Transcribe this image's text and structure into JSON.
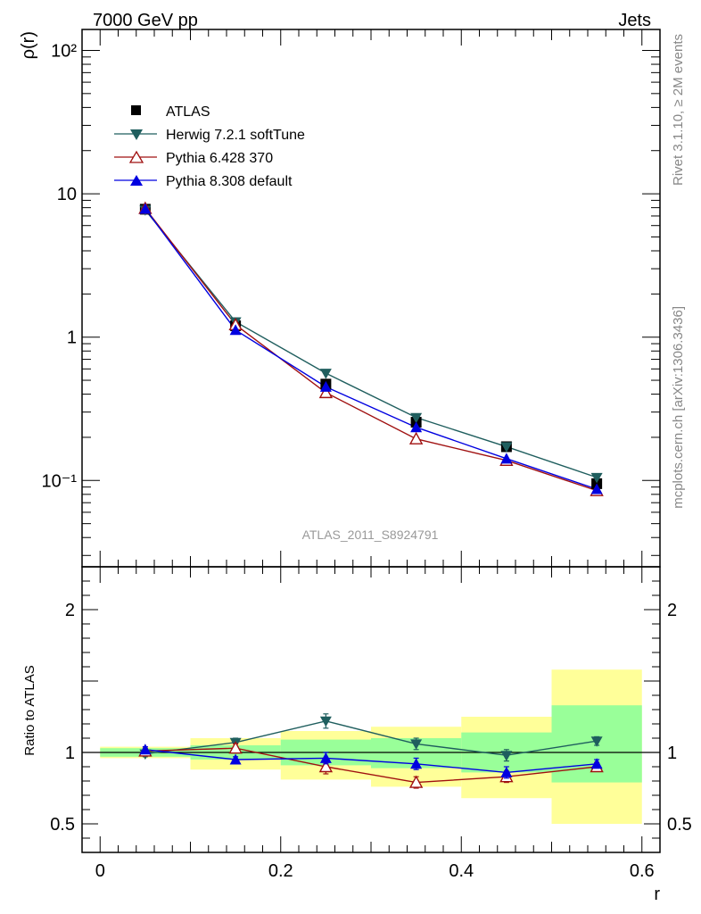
{
  "header": {
    "left_label": "7000 GeV pp",
    "right_label": "Jets"
  },
  "side_labels": {
    "rivet": "Rivet 3.1.10, ≥ 2M events",
    "mcplots": "mcplots.cern.ch [arXiv:1306.3436]"
  },
  "chart_data": [
    {
      "type": "line",
      "panel": "main",
      "ylabel": "ρ(r)",
      "xlabel": "",
      "yscale": "log",
      "ylim": [
        0.025,
        140
      ],
      "xlim": [
        -0.02,
        0.62
      ],
      "y_tick_labels": [
        "10⁻¹",
        "1",
        "10",
        "10²"
      ],
      "analysis_label": "ATLAS_2011_S8924791",
      "legend_position": "top-left",
      "x": [
        0.05,
        0.15,
        0.25,
        0.35,
        0.45,
        0.55
      ],
      "series": [
        {
          "name": "ATLAS",
          "marker": "square-filled",
          "color": "#000000",
          "values": [
            7.8,
            1.2,
            0.47,
            0.255,
            0.172,
            0.095
          ]
        },
        {
          "name": "Herwig 7.2.1 softTune",
          "marker": "triangle-down-filled",
          "color": "#1f5e5e",
          "values": [
            7.7,
            1.28,
            0.56,
            0.275,
            0.172,
            0.105
          ]
        },
        {
          "name": "Pythia 6.428 370",
          "marker": "triangle-up-open",
          "color": "#a01010",
          "values": [
            7.9,
            1.22,
            0.41,
            0.195,
            0.138,
            0.085
          ]
        },
        {
          "name": "Pythia 8.308 default",
          "marker": "triangle-up-filled",
          "color": "#0000e0",
          "values": [
            7.85,
            1.12,
            0.45,
            0.235,
            0.142,
            0.087
          ]
        }
      ]
    },
    {
      "type": "line",
      "panel": "ratio",
      "ylabel": "Ratio to ATLAS",
      "xlabel": "r",
      "ylim": [
        0.3,
        2.3
      ],
      "xlim": [
        -0.02,
        0.62
      ],
      "y_tick_labels": [
        "0.5",
        "1",
        "2"
      ],
      "x_tick_labels": [
        "0",
        "0.2",
        "0.4",
        "0.6"
      ],
      "x_ticks": [
        0,
        0.2,
        0.4,
        0.6
      ],
      "y_ticks": [
        0.5,
        1,
        2
      ],
      "x": [
        0.05,
        0.15,
        0.25,
        0.35,
        0.45,
        0.55
      ],
      "bands": [
        {
          "type": "yellow",
          "color": "#ffff99",
          "bins": [
            [
              0.0,
              0.1,
              0.96,
              1.04
            ],
            [
              0.1,
              0.2,
              0.88,
              1.1
            ],
            [
              0.2,
              0.3,
              0.81,
              1.15
            ],
            [
              0.3,
              0.4,
              0.76,
              1.18
            ],
            [
              0.4,
              0.5,
              0.68,
              1.25
            ],
            [
              0.5,
              0.6,
              0.5,
              1.58
            ]
          ]
        },
        {
          "type": "green",
          "color": "#99ff99",
          "bins": [
            [
              0.0,
              0.1,
              0.97,
              1.03
            ],
            [
              0.1,
              0.2,
              0.95,
              1.05
            ],
            [
              0.2,
              0.3,
              0.91,
              1.09
            ],
            [
              0.3,
              0.4,
              0.89,
              1.1
            ],
            [
              0.4,
              0.5,
              0.86,
              1.14
            ],
            [
              0.5,
              0.6,
              0.79,
              1.33
            ]
          ]
        }
      ],
      "series": [
        {
          "name": "Herwig 7.2.1 softTune",
          "marker": "triangle-down-filled",
          "color": "#1f5e5e",
          "values": [
            0.99,
            1.07,
            1.22,
            1.06,
            0.98,
            1.08
          ],
          "errors": [
            0.02,
            0.03,
            0.05,
            0.04,
            0.04,
            0.03
          ]
        },
        {
          "name": "Pythia 6.428 370",
          "marker": "triangle-up-open",
          "color": "#a01010",
          "values": [
            1.01,
            1.03,
            0.9,
            0.79,
            0.83,
            0.9
          ],
          "errors": [
            0.02,
            0.03,
            0.05,
            0.04,
            0.04,
            0.03
          ]
        },
        {
          "name": "Pythia 8.308 default",
          "marker": "triangle-up-filled",
          "color": "#0000e0",
          "values": [
            1.02,
            0.95,
            0.96,
            0.92,
            0.86,
            0.92
          ],
          "errors": [
            0.02,
            0.02,
            0.04,
            0.04,
            0.04,
            0.03
          ]
        }
      ]
    }
  ]
}
